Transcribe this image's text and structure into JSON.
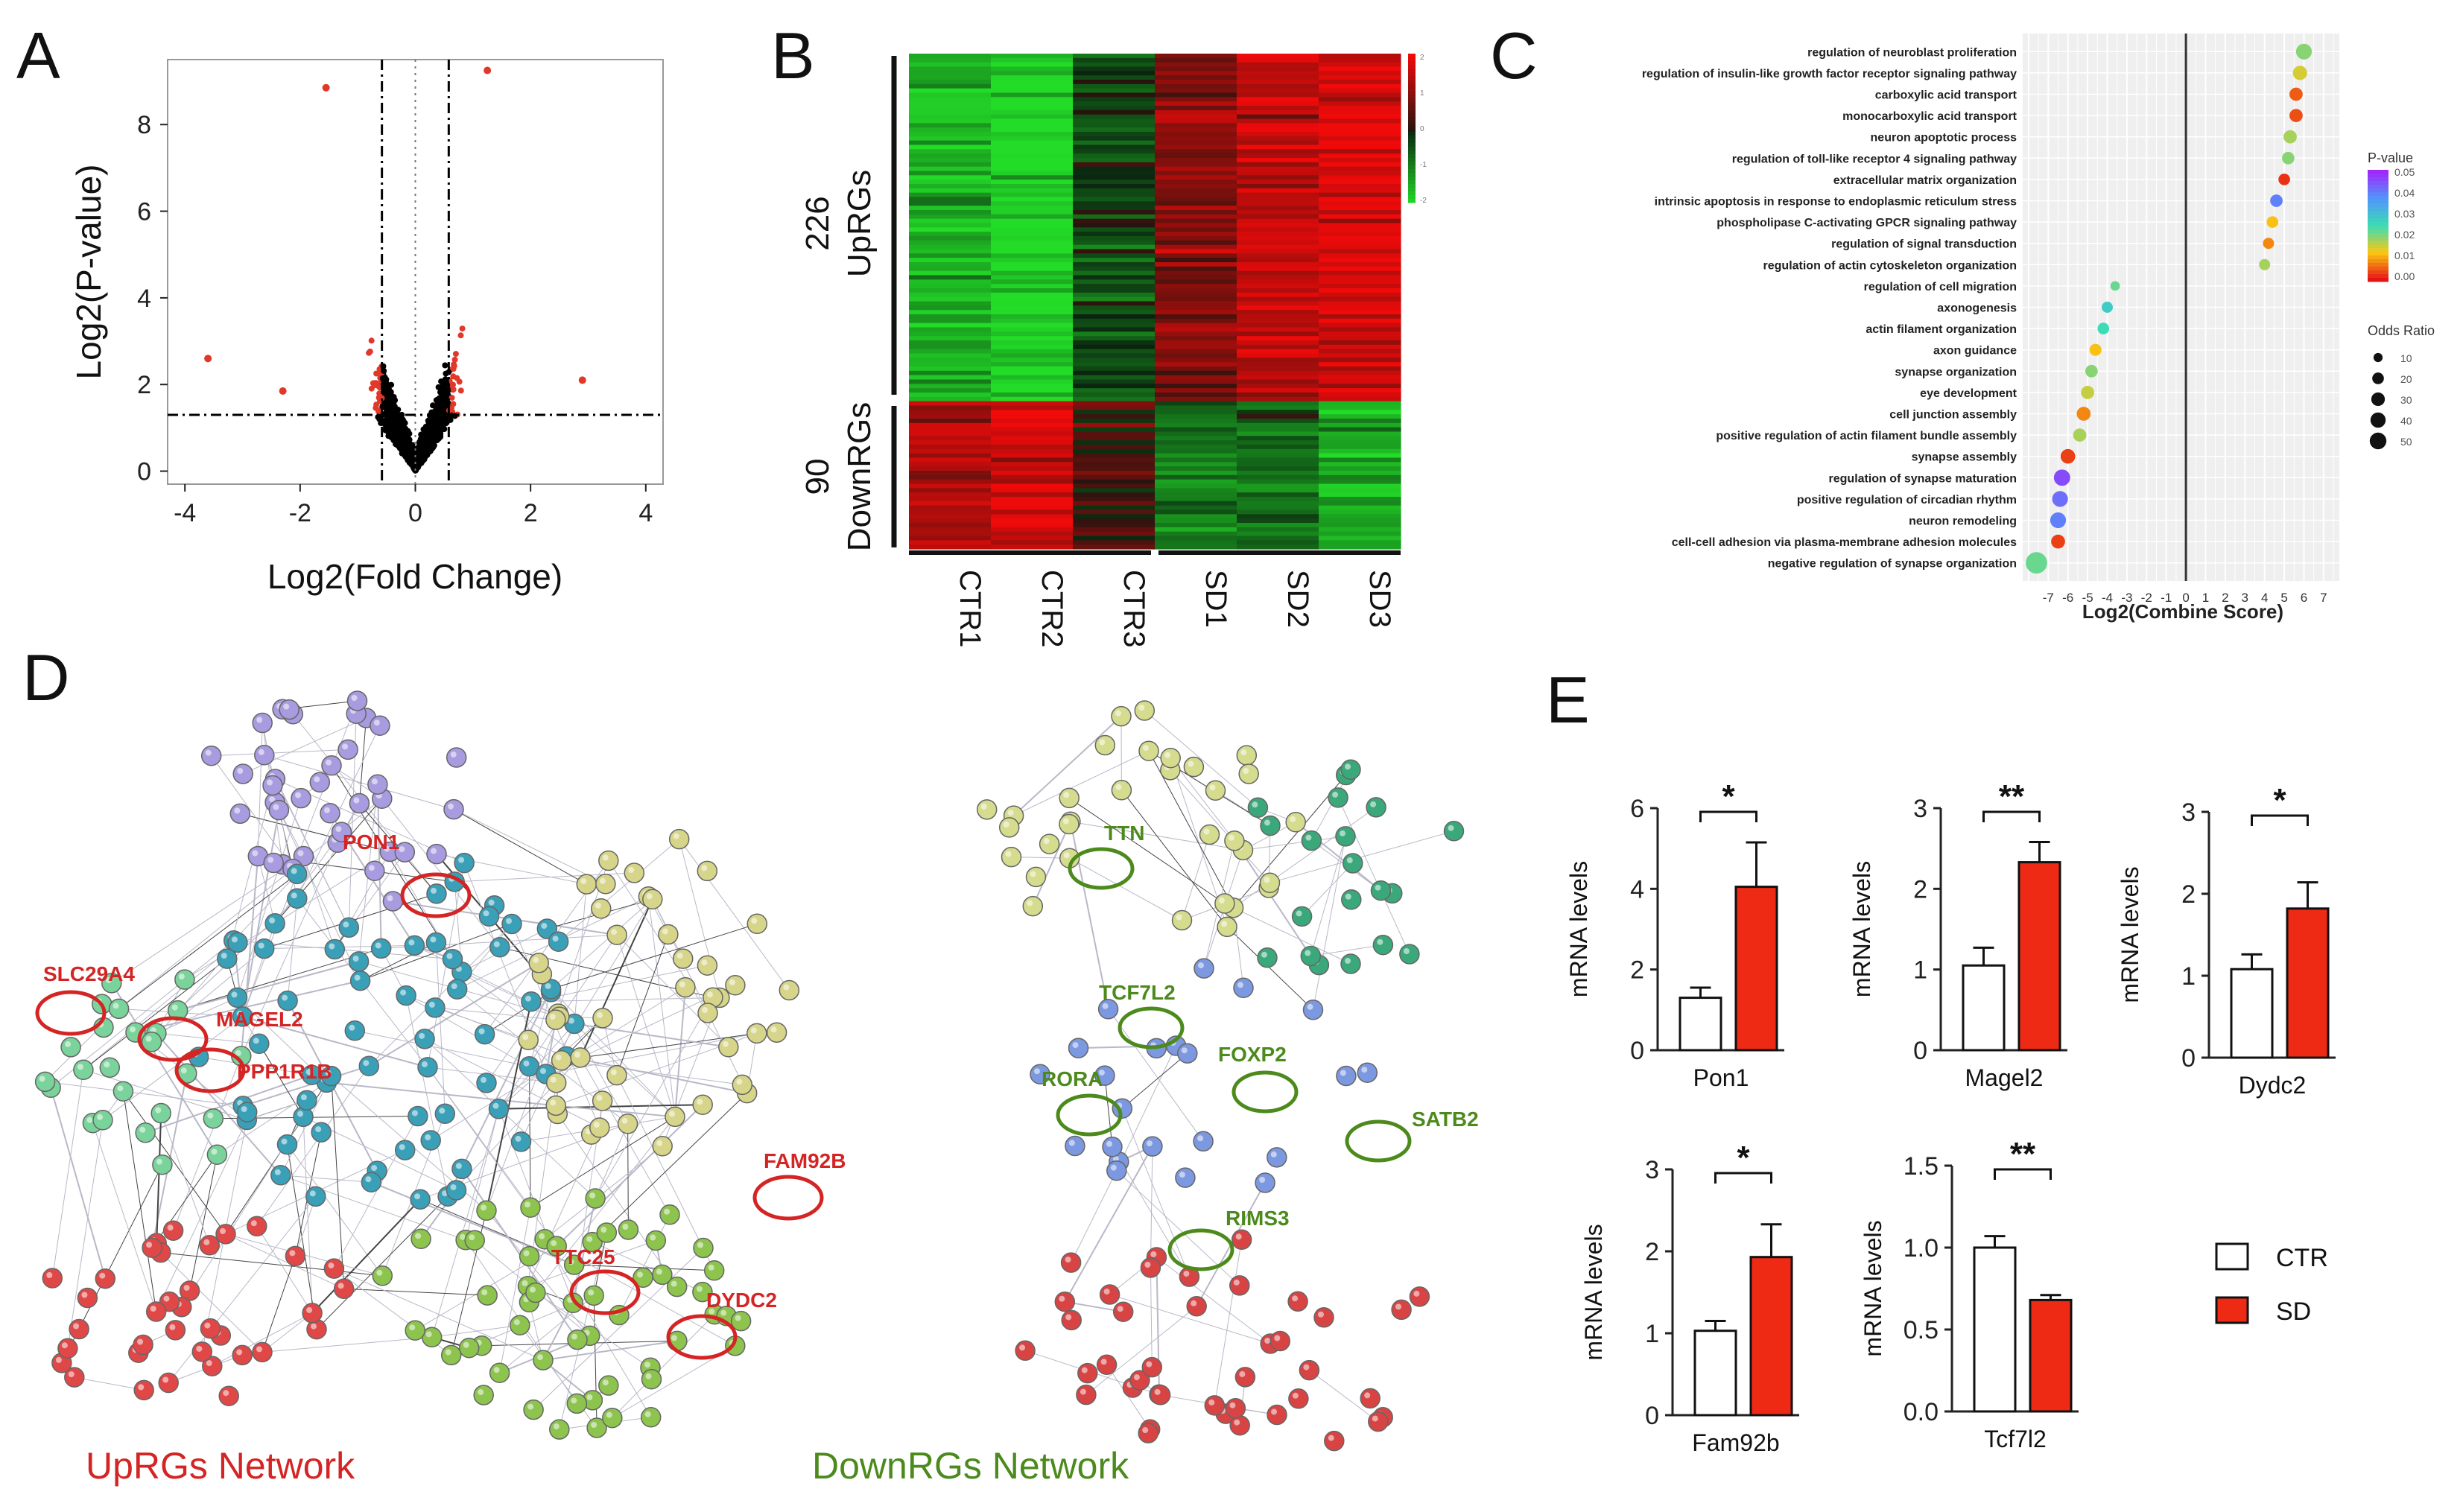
{
  "panels": {
    "A": "A",
    "B": "B",
    "C": "C",
    "D": "D",
    "E": "E"
  },
  "chart_data": [
    {
      "id": "A",
      "type": "scatter",
      "title": "",
      "xlabel": "Log2(Fold Change)",
      "ylabel": "Log2(P-value)",
      "xlim": [
        -4.3,
        4.3
      ],
      "ylim": [
        -0.3,
        9.5
      ],
      "xticks": [
        -4,
        -2,
        0,
        2,
        4
      ],
      "yticks": [
        0,
        2,
        4,
        6,
        8
      ],
      "fold_threshold": [
        -0.58,
        0.58
      ],
      "pvalue_threshold": 1.3,
      "colors": {
        "significant": "#e0392b",
        "other": "#000000"
      },
      "highlight_points": [
        {
          "x": -1.55,
          "y": 8.85
        },
        {
          "x": 1.25,
          "y": 9.25
        },
        {
          "x": -3.6,
          "y": 2.6
        },
        {
          "x": 2.9,
          "y": 2.1
        },
        {
          "x": -2.3,
          "y": 1.85
        }
      ]
    },
    {
      "id": "B",
      "type": "heatmap",
      "columns": [
        "CTR1",
        "CTR2",
        "CTR3",
        "SD1",
        "SD2",
        "SD3"
      ],
      "groups": [
        {
          "count": "226",
          "label": "UpRGs",
          "pattern": [
            -0.75,
            -0.95,
            -0.2,
            0.45,
            0.75,
            0.85
          ],
          "rows": 80
        },
        {
          "count": "90",
          "label": "DownRGs",
          "pattern": [
            0.65,
            0.85,
            0.15,
            -0.45,
            -0.35,
            -0.75
          ],
          "rows": 34
        }
      ],
      "legend_ticks": [
        "2",
        "1",
        "0",
        "-1",
        "-2"
      ],
      "colors": {
        "high": "#e31a1c",
        "mid": "#000000",
        "low": "#2fdc2f"
      }
    },
    {
      "id": "C",
      "type": "scatter",
      "xlabel": "Log2(Combine Score)",
      "xlim": [
        -8.3,
        7.8
      ],
      "xticks": [
        -7,
        -6,
        -5,
        -4,
        -3,
        -2,
        -1,
        0,
        1,
        2,
        3,
        4,
        5,
        6,
        7
      ],
      "terms": [
        {
          "term": "regulation of neuroblast proliferation",
          "x": 6.0,
          "p": 0.02,
          "odds": 20
        },
        {
          "term": "regulation of insulin-like growth factor receptor signaling pathway",
          "x": 5.8,
          "p": 0.015,
          "odds": 15
        },
        {
          "term": "carboxylic acid transport",
          "x": 5.6,
          "p": 0.005,
          "odds": 12
        },
        {
          "term": "monocarboxylic acid transport",
          "x": 5.6,
          "p": 0.004,
          "odds": 12
        },
        {
          "term": "neuron apoptotic process",
          "x": 5.3,
          "p": 0.018,
          "odds": 12
        },
        {
          "term": "regulation of toll-like receptor 4 signaling pathway",
          "x": 5.2,
          "p": 0.02,
          "odds": 10
        },
        {
          "term": "extracellular matrix organization",
          "x": 5.0,
          "p": 0.002,
          "odds": 8
        },
        {
          "term": "intrinsic apoptosis in response to endoplasmic reticulum stress",
          "x": 4.6,
          "p": 0.04,
          "odds": 10
        },
        {
          "term": "phospholipase C-activating GPCR signaling pathway",
          "x": 4.4,
          "p": 0.012,
          "odds": 8
        },
        {
          "term": "regulation of signal transduction",
          "x": 4.2,
          "p": 0.008,
          "odds": 7
        },
        {
          "term": "regulation of actin cytoskeleton organization",
          "x": 4.0,
          "p": 0.018,
          "odds": 7
        },
        {
          "term": "regulation of cell migration",
          "x": -3.6,
          "p": 0.022,
          "odds": 4
        },
        {
          "term": "axonogenesis",
          "x": -4.0,
          "p": 0.028,
          "odds": 7
        },
        {
          "term": "actin filament organization",
          "x": -4.2,
          "p": 0.025,
          "odds": 8
        },
        {
          "term": "axon guidance",
          "x": -4.6,
          "p": 0.012,
          "odds": 9
        },
        {
          "term": "synapse organization",
          "x": -4.8,
          "p": 0.02,
          "odds": 10
        },
        {
          "term": "eye development",
          "x": -5.0,
          "p": 0.016,
          "odds": 12
        },
        {
          "term": "cell junction assembly",
          "x": -5.2,
          "p": 0.008,
          "odds": 14
        },
        {
          "term": "positive regulation of actin filament bundle assembly",
          "x": -5.4,
          "p": 0.018,
          "odds": 12
        },
        {
          "term": "synapse assembly",
          "x": -6.0,
          "p": 0.003,
          "odds": 16
        },
        {
          "term": "regulation of synapse maturation",
          "x": -6.3,
          "p": 0.046,
          "odds": 22
        },
        {
          "term": "positive regulation of circadian rhythm",
          "x": -6.4,
          "p": 0.042,
          "odds": 20
        },
        {
          "term": "neuron remodeling",
          "x": -6.5,
          "p": 0.04,
          "odds": 20
        },
        {
          "term": "cell-cell adhesion via plasma-membrane adhesion molecules",
          "x": -6.5,
          "p": 0.003,
          "odds": 14
        },
        {
          "term": "negative regulation of synapse organization",
          "x": -7.6,
          "p": 0.022,
          "odds": 45
        }
      ],
      "pvalue_legend": {
        "title": "P-value",
        "ticks": [
          "0.05",
          "0.04",
          "0.03",
          "0.02",
          "0.01",
          "0.00"
        ]
      },
      "odds_legend": {
        "title": "Odds Ratio",
        "ticks": [
          "10",
          "20",
          "30",
          "40",
          "50"
        ]
      }
    },
    {
      "id": "E",
      "type": "bar",
      "ylabel": "mRNA levels",
      "legend": [
        {
          "name": "CTR",
          "color": "#ffffff"
        },
        {
          "name": "SD",
          "color": "#ee2a14"
        }
      ],
      "subplots": [
        {
          "gene": "Pon1",
          "ctr": 1.3,
          "sd": 4.05,
          "ctr_err": 0.25,
          "sd_err": 1.1,
          "ylim": [
            0,
            6
          ],
          "yticks": [
            "0",
            "2",
            "4",
            "6"
          ],
          "sig": "*"
        },
        {
          "gene": "Magel2",
          "ctr": 1.05,
          "sd": 2.33,
          "ctr_err": 0.22,
          "sd_err": 0.25,
          "ylim": [
            0,
            3
          ],
          "yticks": [
            "0",
            "1",
            "2",
            "3"
          ],
          "sig": "**"
        },
        {
          "gene": "Dydc2",
          "ctr": 1.08,
          "sd": 1.82,
          "ctr_err": 0.18,
          "sd_err": 0.32,
          "ylim": [
            0,
            3
          ],
          "yticks": [
            "0",
            "1",
            "2",
            "3"
          ],
          "sig": "*"
        },
        {
          "gene": "Fam92b",
          "ctr": 1.03,
          "sd": 1.93,
          "ctr_err": 0.12,
          "sd_err": 0.4,
          "ylim": [
            0,
            3
          ],
          "yticks": [
            "0",
            "1",
            "2",
            "3"
          ],
          "sig": "*"
        },
        {
          "gene": "Tcf7l2",
          "ctr": 1.0,
          "sd": 0.68,
          "ctr_err": 0.07,
          "sd_err": 0.03,
          "ylim": [
            0,
            1.5
          ],
          "yticks": [
            "0.0",
            "0.5",
            "1.0",
            "1.5"
          ],
          "sig": "**"
        }
      ]
    }
  ],
  "network": {
    "up_title": "UpRGs Network",
    "down_title": "DownRGs Network",
    "up_genes": [
      "PON1",
      "SLC29A4",
      "MAGEL2",
      "PPP1R1B",
      "FAM92B",
      "TTC25",
      "DYDC2"
    ],
    "down_genes": [
      "TTN",
      "TCF7L2",
      "FOXP2",
      "RORA",
      "SATB2",
      "RIMS3"
    ],
    "up_color": "#d42424",
    "down_color": "#4c8a1c"
  }
}
